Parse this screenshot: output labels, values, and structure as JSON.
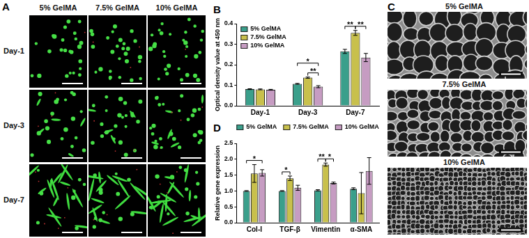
{
  "figure": {
    "A": {
      "letter": "A",
      "columns": [
        "5% GelMA",
        "7.5% GelMA",
        "10% GelMA"
      ],
      "rows": [
        "Day-1",
        "Day-3",
        "Day-7"
      ]
    },
    "C": {
      "letter": "C",
      "labels": [
        "5% GelMA",
        "7.5% GelMA",
        "10% GelMA"
      ]
    }
  },
  "chart_data": [
    {
      "panel": "B",
      "type": "bar",
      "categories": [
        "Day-1",
        "Day-3",
        "Day-7"
      ],
      "y_label": "Optical density value at 450 nm",
      "ylim": [
        0,
        0.4
      ],
      "yticks": [
        {
          "value": 0,
          "label": "0.0"
        },
        0.1,
        0.2,
        0.3,
        0.4
      ],
      "grid": false,
      "legend": "top-left",
      "series": [
        {
          "name": "5% GelMA",
          "color": "#3a9f8b",
          "values": [
            0.081,
            0.107,
            0.265
          ],
          "errors": [
            0.002,
            0.002,
            0.01
          ]
        },
        {
          "name": "7.5% GelMA",
          "color": "#c8c04c",
          "values": [
            0.08,
            0.137,
            0.355
          ],
          "errors": [
            0.002,
            0.003,
            0.012
          ]
        },
        {
          "name": "10% GelMA",
          "color": "#c69cc2",
          "values": [
            0.078,
            0.093,
            0.235
          ],
          "errors": [
            0.002,
            0.005,
            0.02
          ]
        }
      ],
      "annotations": [
        {
          "text": "**",
          "category": "Day-3",
          "from": "7.5% GelMA",
          "to": "10% GelMA"
        },
        {
          "text": "*",
          "category": "Day-3",
          "from": "5% GelMA",
          "to": "10% GelMA"
        },
        {
          "text": "**",
          "category": "Day-7",
          "from": "5% GelMA",
          "to": "7.5% GelMA"
        },
        {
          "text": "**",
          "category": "Day-7",
          "from": "7.5% GelMA",
          "to": "10% GelMA"
        }
      ]
    },
    {
      "panel": "D",
      "type": "bar",
      "categories": [
        "Col-I",
        "TGF-β",
        "Vimentin",
        "α-SMA"
      ],
      "y_label": "Relative gene expression",
      "ylim": [
        0,
        2.5
      ],
      "yticks": [
        {
          "value": 0,
          "label": "0.0"
        },
        0.5,
        {
          "value": 1,
          "label": "1.0"
        },
        1.5,
        {
          "value": 2,
          "label": "2.0"
        },
        2.5
      ],
      "grid": false,
      "legend": "top",
      "series": [
        {
          "name": "5% GelMA",
          "color": "#3a9f8b",
          "values": [
            1.0,
            1.0,
            1.02,
            1.07
          ],
          "errors": [
            0.01,
            0.01,
            0.02,
            0.03
          ]
        },
        {
          "name": "7.5% GelMA",
          "color": "#c8c04c",
          "values": [
            1.55,
            1.4,
            1.83,
            0.93
          ],
          "errors": [
            0.28,
            0.07,
            0.05,
            0.65
          ]
        },
        {
          "name": "10% GelMA",
          "color": "#c69cc2",
          "values": [
            1.57,
            1.1,
            1.25,
            1.63
          ],
          "errors": [
            0.1,
            0.08,
            0.03,
            0.42
          ]
        }
      ],
      "annotations": [
        {
          "text": "*",
          "category": "Col-I",
          "from": "5% GelMA",
          "to": "10% GelMA"
        },
        {
          "text": "*",
          "category": "TGF-β",
          "from": "5% GelMA",
          "to": "7.5% GelMA"
        },
        {
          "text": "**",
          "category": "Vimentin",
          "from": "5% GelMA",
          "to": "7.5% GelMA"
        },
        {
          "text": "*",
          "category": "Vimentin",
          "from": "7.5% GelMA",
          "to": "10% GelMA"
        }
      ]
    }
  ]
}
